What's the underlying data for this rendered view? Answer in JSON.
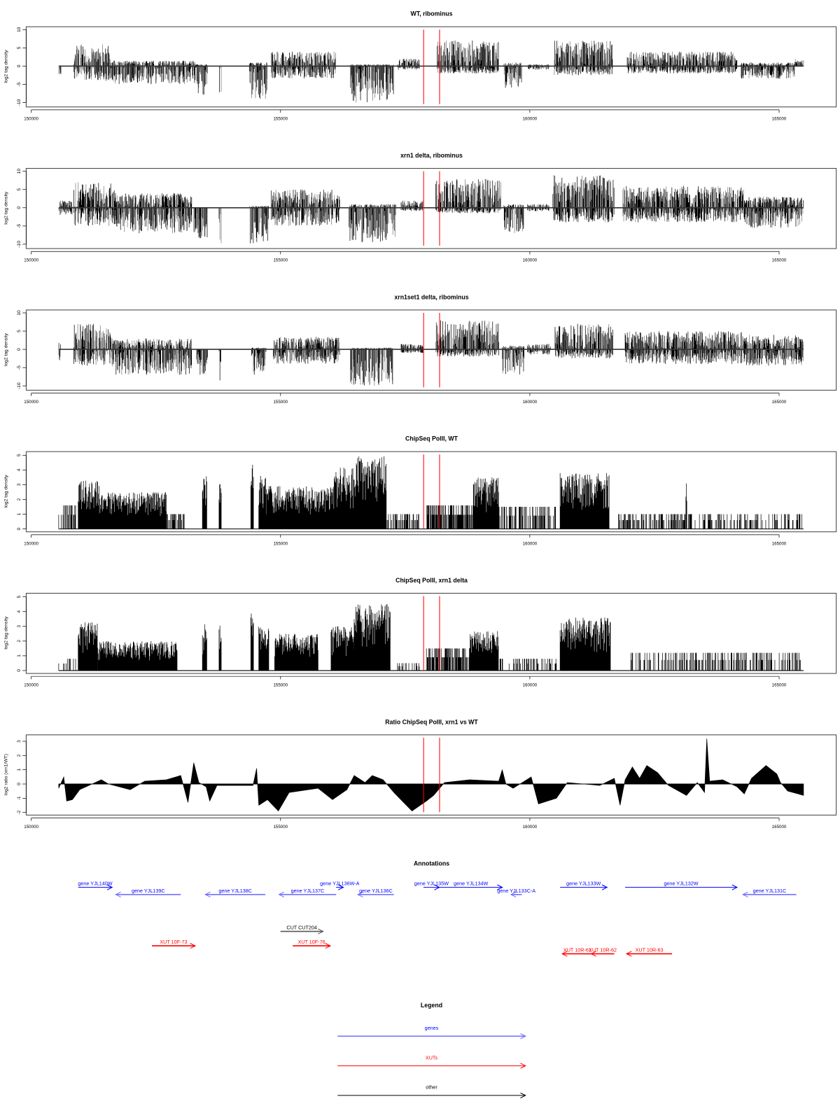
{
  "colors": {
    "signal": "#000000",
    "marker": "#ff0000",
    "gene": "#0000ff",
    "gene_minus": "#7070ff",
    "xut": "#ff0000",
    "other": "#000000"
  },
  "markers": {
    "red_lines_bp": [
      157870,
      158190
    ]
  },
  "chart_data": [
    {
      "type": "bar",
      "title": "WT, ribominus",
      "ylabel": "log2 tag density",
      "xlabel": "",
      "xlim": [
        149900,
        165700
      ],
      "ylim": [
        -11,
        11
      ],
      "yticks": [
        "-10",
        "-5",
        "0",
        "5",
        "10"
      ],
      "ytick_values": [
        -10,
        -5,
        0,
        5,
        10
      ],
      "xticks": [
        "150000",
        "155000",
        "160000",
        "165000"
      ],
      "xtick_values": [
        150000,
        155000,
        160000,
        165000
      ],
      "segments_note": "start_bp, end_bp, max_pos, max_neg",
      "segments": [
        [
          150560,
          150600,
          0,
          -2.5
        ],
        [
          150855,
          151579,
          6,
          -4
        ],
        [
          151579,
          153289,
          1.5,
          -5
        ],
        [
          153289,
          153536,
          0.5,
          -8
        ],
        [
          153767,
          153811,
          0,
          -10
        ],
        [
          154376,
          154738,
          1,
          -9
        ],
        [
          154811,
          156115,
          4,
          -3.5
        ],
        [
          156405,
          157274,
          0.5,
          -10
        ],
        [
          157346,
          157781,
          2,
          -1
        ],
        [
          158143,
          159375,
          7,
          -2
        ],
        [
          159477,
          159839,
          1,
          -6
        ],
        [
          159955,
          160390,
          0.5,
          -1
        ],
        [
          160491,
          161664,
          7,
          -2.5
        ],
        [
          161954,
          164157,
          4,
          -2
        ],
        [
          164230,
          165316,
          1,
          -3.5
        ],
        [
          165316,
          165490,
          2,
          0
        ]
      ]
    },
    {
      "type": "bar",
      "title": "xrn1 delta, ribominus",
      "ylabel": "log2 tag density",
      "xlabel": "",
      "xlim": [
        149900,
        165700
      ],
      "ylim": [
        -11,
        11
      ],
      "yticks": [
        "-10",
        "-5",
        "0",
        "5",
        "10"
      ],
      "ytick_values": [
        -10,
        -5,
        0,
        5,
        10
      ],
      "xticks": [
        "150000",
        "155000",
        "160000",
        "165000"
      ],
      "xtick_values": [
        150000,
        155000,
        160000,
        165000
      ],
      "segments": [
        [
          150551,
          150826,
          2,
          -2
        ],
        [
          150855,
          151695,
          7,
          -5
        ],
        [
          151695,
          153217,
          4,
          -7
        ],
        [
          153260,
          153536,
          0,
          -9
        ],
        [
          153767,
          153811,
          0,
          -10
        ],
        [
          154376,
          154767,
          0.5,
          -10
        ],
        [
          154811,
          156187,
          5,
          -5
        ],
        [
          156376,
          157317,
          1,
          -9.5
        ],
        [
          157419,
          157854,
          2,
          -1
        ],
        [
          158114,
          159419,
          8,
          -1.5
        ],
        [
          159477,
          159883,
          1,
          -7
        ],
        [
          159955,
          160390,
          1,
          -1
        ],
        [
          160462,
          161694,
          9,
          -4
        ],
        [
          161867,
          164302,
          6,
          -4
        ],
        [
          164302,
          165490,
          3,
          -5.5
        ]
      ]
    },
    {
      "type": "bar",
      "title": "xrn1set1 delta, ribominus",
      "ylabel": "log2 tag density",
      "xlabel": "",
      "xlim": [
        149900,
        165700
      ],
      "ylim": [
        -11,
        11
      ],
      "yticks": [
        "-10",
        "-5",
        "0",
        "5",
        "10"
      ],
      "ytick_values": [
        -10,
        -5,
        0,
        5,
        10
      ],
      "xticks": [
        "150000",
        "155000",
        "160000",
        "165000"
      ],
      "xtick_values": [
        150000,
        155000,
        160000,
        165000
      ],
      "segments": [
        [
          150551,
          150594,
          2.5,
          -3
        ],
        [
          150855,
          151623,
          7,
          -4.5
        ],
        [
          151623,
          153217,
          3,
          -7
        ],
        [
          153318,
          153536,
          0,
          -7
        ],
        [
          153767,
          153811,
          0,
          -9
        ],
        [
          154420,
          154709,
          0.5,
          -7
        ],
        [
          154854,
          156187,
          3.5,
          -4
        ],
        [
          156405,
          157274,
          0.5,
          -10
        ],
        [
          157419,
          157854,
          1.5,
          -1
        ],
        [
          158114,
          159375,
          8,
          -2
        ],
        [
          159448,
          159883,
          1,
          -7
        ],
        [
          159955,
          160419,
          1.5,
          -1.5
        ],
        [
          160506,
          161664,
          7,
          -2.5
        ],
        [
          161911,
          164302,
          5,
          -4
        ],
        [
          164302,
          165490,
          4,
          -4.5
        ]
      ]
    },
    {
      "type": "bar",
      "title": "ChipSeq PolII, WT",
      "ylabel": "log2 tag density",
      "xlabel": "",
      "xlim": [
        149900,
        165700
      ],
      "ylim": [
        0,
        5.2
      ],
      "yticks": [
        "0",
        "1",
        "2",
        "3",
        "4",
        "5"
      ],
      "ytick_values": [
        0,
        1,
        2,
        3,
        4,
        5
      ],
      "xticks": [
        "150000",
        "155000",
        "160000",
        "165000"
      ],
      "xtick_values": [
        150000,
        155000,
        160000,
        165000
      ],
      "segments_note": "start_bp, end_bp, max_value, coverage",
      "segments": [
        [
          150551,
          150898,
          1.6,
          0.5
        ],
        [
          150942,
          151362,
          3.3,
          1
        ],
        [
          151362,
          152710,
          2.5,
          1
        ],
        [
          152710,
          153072,
          1,
          0.6
        ],
        [
          153434,
          153521,
          3.6,
          1
        ],
        [
          153767,
          153811,
          3.7,
          1
        ],
        [
          154405,
          154463,
          4.6,
          1
        ],
        [
          154564,
          154709,
          3.6,
          1
        ],
        [
          154709,
          156042,
          2.9,
          1
        ],
        [
          156042,
          156477,
          4.2,
          1
        ],
        [
          156477,
          157129,
          5,
          1
        ],
        [
          157129,
          157781,
          1,
          0.5
        ],
        [
          157926,
          158868,
          1.6,
          0.7
        ],
        [
          158868,
          159375,
          3.5,
          1
        ],
        [
          159375,
          160534,
          1.5,
          0.5
        ],
        [
          160607,
          161592,
          3.8,
          1
        ],
        [
          161766,
          165490,
          1,
          0.4
        ],
        [
          163130,
          163150,
          3.2,
          1
        ]
      ]
    },
    {
      "type": "bar",
      "title": "ChipSeq PolII, xrn1 delta",
      "ylabel": "log2 tag density",
      "xlabel": "",
      "xlim": [
        149900,
        165700
      ],
      "ylim": [
        0,
        5.2
      ],
      "yticks": [
        "0",
        "1",
        "2",
        "3",
        "4",
        "5"
      ],
      "ytick_values": [
        0,
        1,
        2,
        3,
        4,
        5
      ],
      "xticks": [
        "150000",
        "155000",
        "160000",
        "165000"
      ],
      "xtick_values": [
        150000,
        155000,
        160000,
        165000
      ],
      "segments": [
        [
          150551,
          150898,
          0.8,
          0.3
        ],
        [
          150942,
          151333,
          3.3,
          1
        ],
        [
          151333,
          152927,
          2,
          1
        ],
        [
          153434,
          153521,
          3.2,
          1
        ],
        [
          153767,
          153811,
          3.3,
          1
        ],
        [
          154405,
          154463,
          4.4,
          1
        ],
        [
          154564,
          154767,
          3,
          1
        ],
        [
          154883,
          155753,
          2.5,
          1
        ],
        [
          156013,
          156477,
          3,
          1
        ],
        [
          156477,
          157201,
          4.6,
          1
        ],
        [
          157346,
          157781,
          0.5,
          0.3
        ],
        [
          157926,
          158795,
          1.5,
          0.7
        ],
        [
          158795,
          159375,
          2.7,
          1
        ],
        [
          159375,
          160534,
          0.8,
          0.4
        ],
        [
          160607,
          161621,
          3.6,
          1
        ],
        [
          162027,
          165490,
          1.2,
          0.4
        ]
      ]
    },
    {
      "type": "area",
      "title": "Ratio ChipSeq PolII, xrn1 vs WT",
      "ylabel": "log2 ratio (xrn1/WT)",
      "xlabel": "",
      "xlim": [
        149900,
        165700
      ],
      "ylim": [
        -2.2,
        3.3
      ],
      "yticks": [
        "-2",
        "-1",
        "0",
        "1",
        "2",
        "3"
      ],
      "ytick_values": [
        -2,
        -1,
        0,
        1,
        2,
        3
      ],
      "xticks": [
        "150000",
        "155000",
        "160000",
        "165000"
      ],
      "xtick_values": [
        150000,
        155000,
        160000,
        165000
      ],
      "points": [
        [
          150551,
          -0.3
        ],
        [
          150652,
          0.5
        ],
        [
          150710,
          -1.2
        ],
        [
          150826,
          -1.1
        ],
        [
          150971,
          -0.4
        ],
        [
          151406,
          0.3
        ],
        [
          151550,
          0
        ],
        [
          151985,
          -0.4
        ],
        [
          152275,
          0.2
        ],
        [
          152710,
          0.3
        ],
        [
          152999,
          0.6
        ],
        [
          153144,
          -1.3
        ],
        [
          153260,
          1.5
        ],
        [
          153362,
          0.1
        ],
        [
          153507,
          -0.2
        ],
        [
          153579,
          -1.2
        ],
        [
          153724,
          -0.1
        ],
        [
          154448,
          -0.1
        ],
        [
          154521,
          1.1
        ],
        [
          154564,
          -1.5
        ],
        [
          154738,
          -1.1
        ],
        [
          154956,
          -1.9
        ],
        [
          155173,
          -0.6
        ],
        [
          155753,
          -0.3
        ],
        [
          156042,
          -1.1
        ],
        [
          156332,
          -0.4
        ],
        [
          156477,
          0.6
        ],
        [
          156694,
          0.1
        ],
        [
          156839,
          0.6
        ],
        [
          157057,
          0.3
        ],
        [
          157274,
          -0.6
        ],
        [
          157636,
          -1.9
        ],
        [
          157926,
          -1.2
        ],
        [
          158071,
          -0.8
        ],
        [
          158288,
          0.1
        ],
        [
          158795,
          0.3
        ],
        [
          159375,
          0.2
        ],
        [
          159447,
          1.0
        ],
        [
          159520,
          0
        ],
        [
          159665,
          -0.3
        ],
        [
          160027,
          0.5
        ],
        [
          160172,
          -1.4
        ],
        [
          160534,
          -1.0
        ],
        [
          160752,
          0.1
        ],
        [
          161404,
          -0.1
        ],
        [
          161694,
          0.4
        ],
        [
          161810,
          -1.5
        ],
        [
          161911,
          0.3
        ],
        [
          162056,
          1.2
        ],
        [
          162201,
          0.4
        ],
        [
          162346,
          1.3
        ],
        [
          162563,
          0.8
        ],
        [
          162780,
          -0.1
        ],
        [
          163142,
          -0.8
        ],
        [
          163360,
          0.1
        ],
        [
          163505,
          -0.6
        ],
        [
          163549,
          3.2
        ],
        [
          163607,
          0.2
        ],
        [
          163867,
          0.3
        ],
        [
          164157,
          -0.2
        ],
        [
          164302,
          -0.7
        ],
        [
          164447,
          0.4
        ],
        [
          164737,
          1.3
        ],
        [
          164955,
          0.7
        ],
        [
          165027,
          0.1
        ],
        [
          165172,
          -0.5
        ],
        [
          165490,
          -0.8
        ]
      ]
    }
  ],
  "annotations": {
    "title": "Annotations",
    "features": [
      {
        "label": "gene YJL140W",
        "type": "gene",
        "start": 150942,
        "end": 151623,
        "strand": "+",
        "row": 1
      },
      {
        "label": "gene YJL139C",
        "type": "gene",
        "start": 151695,
        "end": 152999,
        "strand": "-",
        "row": 2
      },
      {
        "label": "gene YJL138C",
        "type": "gene",
        "start": 153492,
        "end": 154695,
        "strand": "-",
        "row": 2
      },
      {
        "label": "gene YJL137C",
        "type": "gene",
        "start": 154970,
        "end": 156115,
        "strand": "-",
        "row": 2
      },
      {
        "label": "gene YJL136W-A",
        "type": "gene",
        "start": 156115,
        "end": 156260,
        "strand": "+",
        "row": 1
      },
      {
        "label": "gene YJL136C",
        "type": "gene",
        "start": 156550,
        "end": 157274,
        "strand": "-",
        "row": 2
      },
      {
        "label": "gene YJL135W",
        "type": "gene",
        "start": 157868,
        "end": 158187,
        "strand": "+",
        "row": 1
      },
      {
        "label": "gene YJL134W",
        "type": "gene",
        "start": 158187,
        "end": 159448,
        "strand": "+",
        "row": 1
      },
      {
        "label": "gene YJL133C-A",
        "type": "gene",
        "start": 159622,
        "end": 159839,
        "strand": "-",
        "row": 2
      },
      {
        "label": "gene YJL133W",
        "type": "gene",
        "start": 160607,
        "end": 161549,
        "strand": "+",
        "row": 1
      },
      {
        "label": "gene YJL132W",
        "type": "gene",
        "start": 161911,
        "end": 164157,
        "strand": "+",
        "row": 1
      },
      {
        "label": "gene YJL131C",
        "type": "gene",
        "start": 164273,
        "end": 165345,
        "strand": "-",
        "row": 2
      },
      {
        "label": "CUT CUT204",
        "type": "other",
        "start": 154999,
        "end": 155854,
        "strand": "+",
        "row": 3
      },
      {
        "label": "XUT 10F-73",
        "type": "xut",
        "start": 152420,
        "end": 153289,
        "strand": "+",
        "row": 4
      },
      {
        "label": "XUT 10F-76",
        "type": "xut",
        "start": 155245,
        "end": 155999,
        "strand": "+",
        "row": 4
      },
      {
        "label": "XUT 10R-61",
        "type": "xut",
        "start": 160650,
        "end": 161259,
        "strand": "-",
        "row": 5
      },
      {
        "label": "XUT 10R-62",
        "type": "xut",
        "start": 161230,
        "end": 161694,
        "strand": "-",
        "row": 5
      },
      {
        "label": "XUT 10R-63",
        "type": "xut",
        "start": 161940,
        "end": 162853,
        "strand": "-",
        "row": 5
      }
    ]
  },
  "legend": {
    "title": "Legend",
    "items": [
      {
        "label": "genes",
        "type": "gene"
      },
      {
        "label": "XUTs",
        "type": "xut"
      },
      {
        "label": "other",
        "type": "other"
      }
    ]
  }
}
